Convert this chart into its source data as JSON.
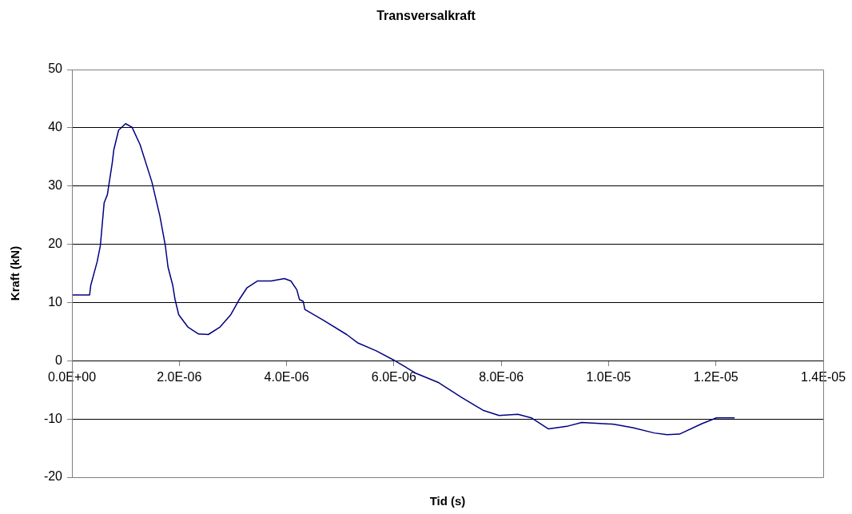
{
  "chart_data": {
    "type": "line",
    "title": "Transversalkraft",
    "xlabel": "Tid (s)",
    "ylabel": "Kraft (kN)",
    "xlim": [
      0,
      1.4e-05
    ],
    "xticks": [
      {
        "value": 0,
        "label": "0.0E+00"
      },
      {
        "value": 2e-06,
        "label": "2.0E-06"
      },
      {
        "value": 4e-06,
        "label": "4.0E-06"
      },
      {
        "value": 6e-06,
        "label": "6.0E-06"
      },
      {
        "value": 8e-06,
        "label": "8.0E-06"
      },
      {
        "value": 1e-05,
        "label": "1.0E-05"
      },
      {
        "value": 1.2e-05,
        "label": "1.2E-05"
      },
      {
        "value": 1.4e-05,
        "label": "1.4E-05"
      }
    ],
    "ylim": [
      -20,
      50
    ],
    "yticks": [
      -20,
      -10,
      0,
      10,
      20,
      30,
      40,
      50
    ],
    "grid": "y",
    "legend": false,
    "marker": "none",
    "line_style": "solid",
    "series": [
      {
        "color": "#000080",
        "x": [
          0,
          3.3e-07,
          3.5e-07,
          4.7e-07,
          5.3e-07,
          6e-07,
          6.6e-07,
          7.5e-07,
          7.8e-07,
          8.7e-07,
          1e-06,
          1.12e-06,
          1.27e-06,
          1.49e-06,
          1.64e-06,
          1.74e-06,
          1.79e-06,
          1.88e-06,
          1.92e-06,
          1.99e-06,
          2.16e-06,
          2.36e-06,
          2.54e-06,
          2.76e-06,
          2.96e-06,
          3.11e-06,
          3.26e-06,
          3.46e-06,
          3.71e-06,
          3.96e-06,
          4.08e-06,
          4.19e-06,
          4.24e-06,
          4.31e-06,
          4.34e-06,
          4.68e-06,
          5.12e-06,
          5.32e-06,
          5.67e-06,
          6.02e-06,
          6.42e-06,
          6.82e-06,
          7.26e-06,
          7.66e-06,
          7.96e-06,
          8.31e-06,
          8.56e-06,
          8.88e-06,
          9.25e-06,
          9.5e-06,
          1.01e-05,
          1.045e-05,
          1.085e-05,
          1.109e-05,
          1.132e-05,
          1.174e-05,
          1.201e-05,
          1.235e-05
        ],
        "values": [
          11.3,
          11.3,
          12.9,
          17.0,
          19.8,
          27.1,
          28.5,
          33.9,
          36.2,
          39.6,
          40.7,
          40.1,
          37.1,
          30.7,
          24.8,
          19.8,
          16.1,
          12.9,
          10.6,
          7.9,
          5.8,
          4.6,
          4.5,
          5.8,
          7.9,
          10.4,
          12.5,
          13.7,
          13.7,
          14.1,
          13.7,
          12.2,
          10.5,
          10.2,
          8.8,
          7.0,
          4.5,
          3.1,
          1.7,
          0,
          -2.2,
          -3.7,
          -6.3,
          -8.5,
          -9.4,
          -9.2,
          -9.8,
          -11.7,
          -11.2,
          -10.6,
          -10.9,
          -11.5,
          -12.4,
          -12.7,
          -12.6,
          -10.8,
          -9.8,
          -9.8
        ]
      }
    ]
  }
}
